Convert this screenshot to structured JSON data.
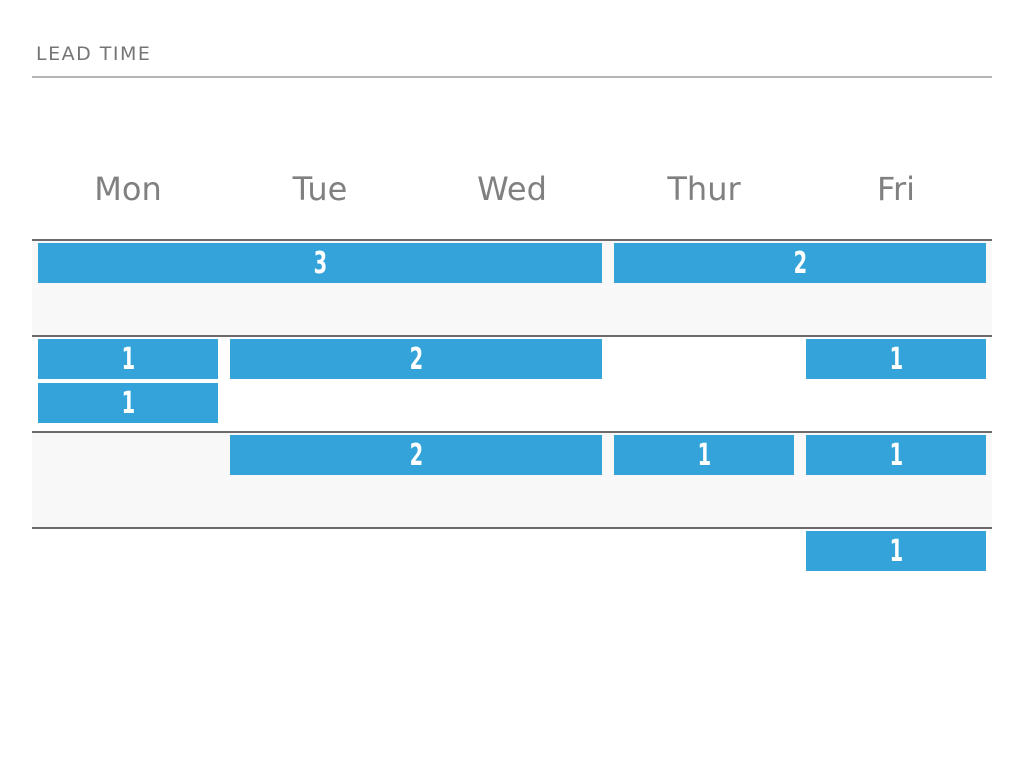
{
  "title": "LEAD TIME",
  "days": [
    "Mon",
    "Tue",
    "Wed",
    "Thur",
    "Fri"
  ],
  "rows": [
    {
      "blocks": [
        {
          "label": "3",
          "start": 0,
          "span": 3
        },
        {
          "label": "2",
          "start": 3,
          "span": 2
        }
      ]
    },
    {
      "blocks": [
        {
          "label": "1",
          "start": 0,
          "span": 1
        },
        {
          "label": "2",
          "start": 1,
          "span": 2
        },
        {
          "label": "1",
          "start": 4,
          "span": 1
        },
        {
          "label": "1",
          "start": 0,
          "span": 1,
          "stack": 1
        }
      ]
    },
    {
      "blocks": [
        {
          "label": "2",
          "start": 1,
          "span": 2
        },
        {
          "label": "1",
          "start": 3,
          "span": 1
        },
        {
          "label": "1",
          "start": 4,
          "span": 1
        }
      ]
    },
    {
      "blocks": [
        {
          "label": "1",
          "start": 4,
          "span": 1
        }
      ]
    }
  ],
  "colors": {
    "block": "#33a3da",
    "band": "#f8f8f8",
    "rule": "#6b6b6b",
    "text": "#808080"
  }
}
